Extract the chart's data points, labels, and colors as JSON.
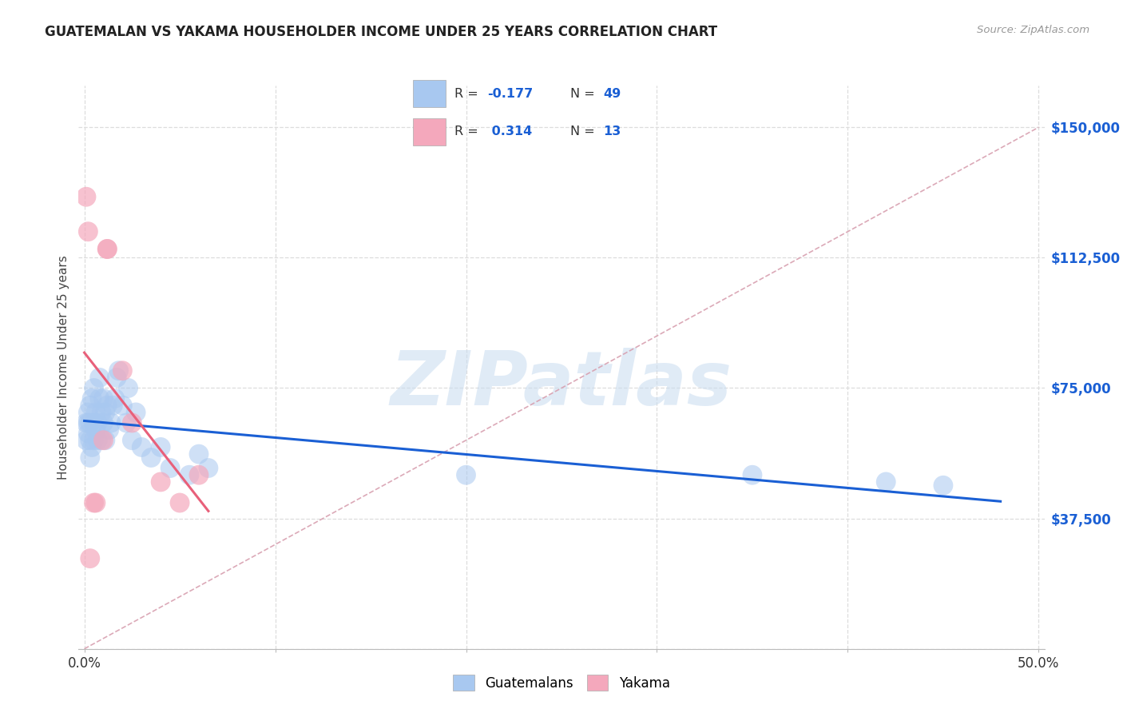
{
  "title": "GUATEMALAN VS YAKAMA HOUSEHOLDER INCOME UNDER 25 YEARS CORRELATION CHART",
  "source": "Source: ZipAtlas.com",
  "ylabel": "Householder Income Under 25 years",
  "yticks": [
    0,
    37500,
    75000,
    112500,
    150000
  ],
  "ytick_labels": [
    "",
    "$37,500",
    "$75,000",
    "$112,500",
    "$150,000"
  ],
  "xlim": [
    -0.003,
    0.503
  ],
  "ylim": [
    0,
    162000
  ],
  "watermark_text": "ZIPatlas",
  "blue_color": "#A8C8F0",
  "pink_color": "#F4A8BC",
  "line_blue_color": "#1A5FD4",
  "line_pink_color": "#E8607A",
  "ref_line_color": "#D8A0B0",
  "grid_color": "#DDDDDD",
  "guatemalan_x": [
    0.001,
    0.001,
    0.002,
    0.002,
    0.002,
    0.003,
    0.003,
    0.003,
    0.003,
    0.004,
    0.004,
    0.005,
    0.005,
    0.005,
    0.006,
    0.006,
    0.007,
    0.007,
    0.008,
    0.008,
    0.009,
    0.009,
    0.01,
    0.01,
    0.011,
    0.011,
    0.012,
    0.013,
    0.014,
    0.015,
    0.016,
    0.017,
    0.018,
    0.02,
    0.022,
    0.023,
    0.025,
    0.027,
    0.03,
    0.035,
    0.04,
    0.045,
    0.055,
    0.06,
    0.065,
    0.2,
    0.35,
    0.42,
    0.45
  ],
  "guatemalan_y": [
    60000,
    65000,
    62000,
    65000,
    68000,
    55000,
    60000,
    65000,
    70000,
    58000,
    72000,
    60000,
    65000,
    75000,
    63000,
    68000,
    60000,
    65000,
    72000,
    78000,
    60000,
    68000,
    65000,
    72000,
    60000,
    68000,
    70000,
    63000,
    65000,
    70000,
    72000,
    78000,
    80000,
    70000,
    65000,
    75000,
    60000,
    68000,
    58000,
    55000,
    58000,
    52000,
    50000,
    56000,
    52000,
    50000,
    50000,
    48000,
    47000
  ],
  "yakama_x": [
    0.001,
    0.002,
    0.003,
    0.005,
    0.006,
    0.01,
    0.012,
    0.012,
    0.02,
    0.025,
    0.04,
    0.05,
    0.06
  ],
  "yakama_y": [
    130000,
    120000,
    26000,
    42000,
    42000,
    60000,
    115000,
    115000,
    80000,
    65000,
    48000,
    42000,
    50000
  ]
}
